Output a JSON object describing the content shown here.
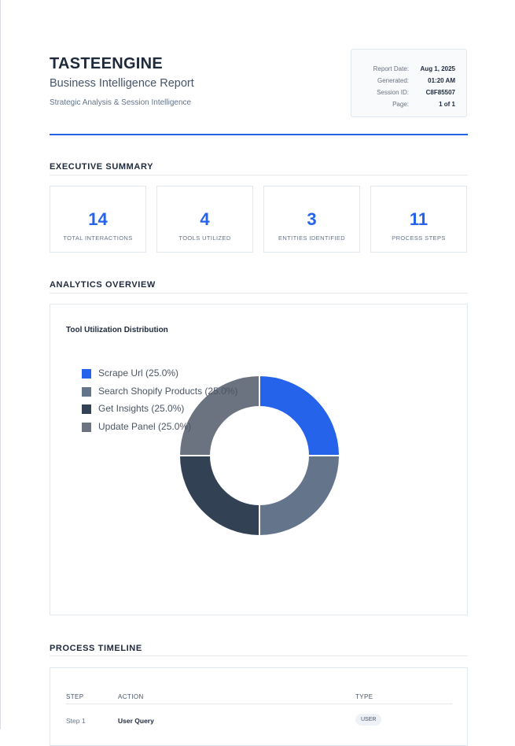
{
  "report": {
    "brand": "TASTEENGINE",
    "subtitle": "Business Intelligence Report",
    "tagline": "Strategic Analysis & Session Intelligence"
  },
  "meta": [
    {
      "label": "Report Date:",
      "value": "Aug 1, 2025"
    },
    {
      "label": "Generated:",
      "value": "01:20 AM"
    },
    {
      "label": "Session ID:",
      "value": "C8F85507"
    },
    {
      "label": "Page:",
      "value": "1 of 1"
    }
  ],
  "executive_summary": {
    "title": "EXECUTIVE SUMMARY",
    "kpis": [
      {
        "value": "14",
        "label": "TOTAL INTERACTIONS"
      },
      {
        "value": "4",
        "label": "TOOLS UTILIZED"
      },
      {
        "value": "3",
        "label": "ENTITIES IDENTIFIED"
      },
      {
        "value": "11",
        "label": "PROCESS STEPS"
      }
    ]
  },
  "analytics": {
    "title": "ANALYTICS OVERVIEW"
  },
  "chart_data": {
    "type": "pie",
    "donut": true,
    "title": "Tool Utilization Distribution",
    "legend_position": "top-left",
    "categories": [
      "Scrape Url",
      "Search Shopify Products",
      "Get Insights",
      "Update Panel"
    ],
    "values": [
      25.0,
      25.0,
      25.0,
      25.0
    ],
    "legend_labels": [
      "Scrape Url (25.0%)",
      "Search Shopify Products (25.0%)",
      "Get Insights (25.0%)",
      "Update Panel (25.0%)"
    ],
    "colors": [
      "#2563eb",
      "#64748b",
      "#334155",
      "#6b7280"
    ]
  },
  "timeline": {
    "title": "PROCESS TIMELINE",
    "columns": [
      "STEP",
      "ACTION",
      "TYPE"
    ],
    "rows": [
      {
        "step": "Step 1",
        "action": "User Query",
        "type": "USER"
      }
    ]
  }
}
